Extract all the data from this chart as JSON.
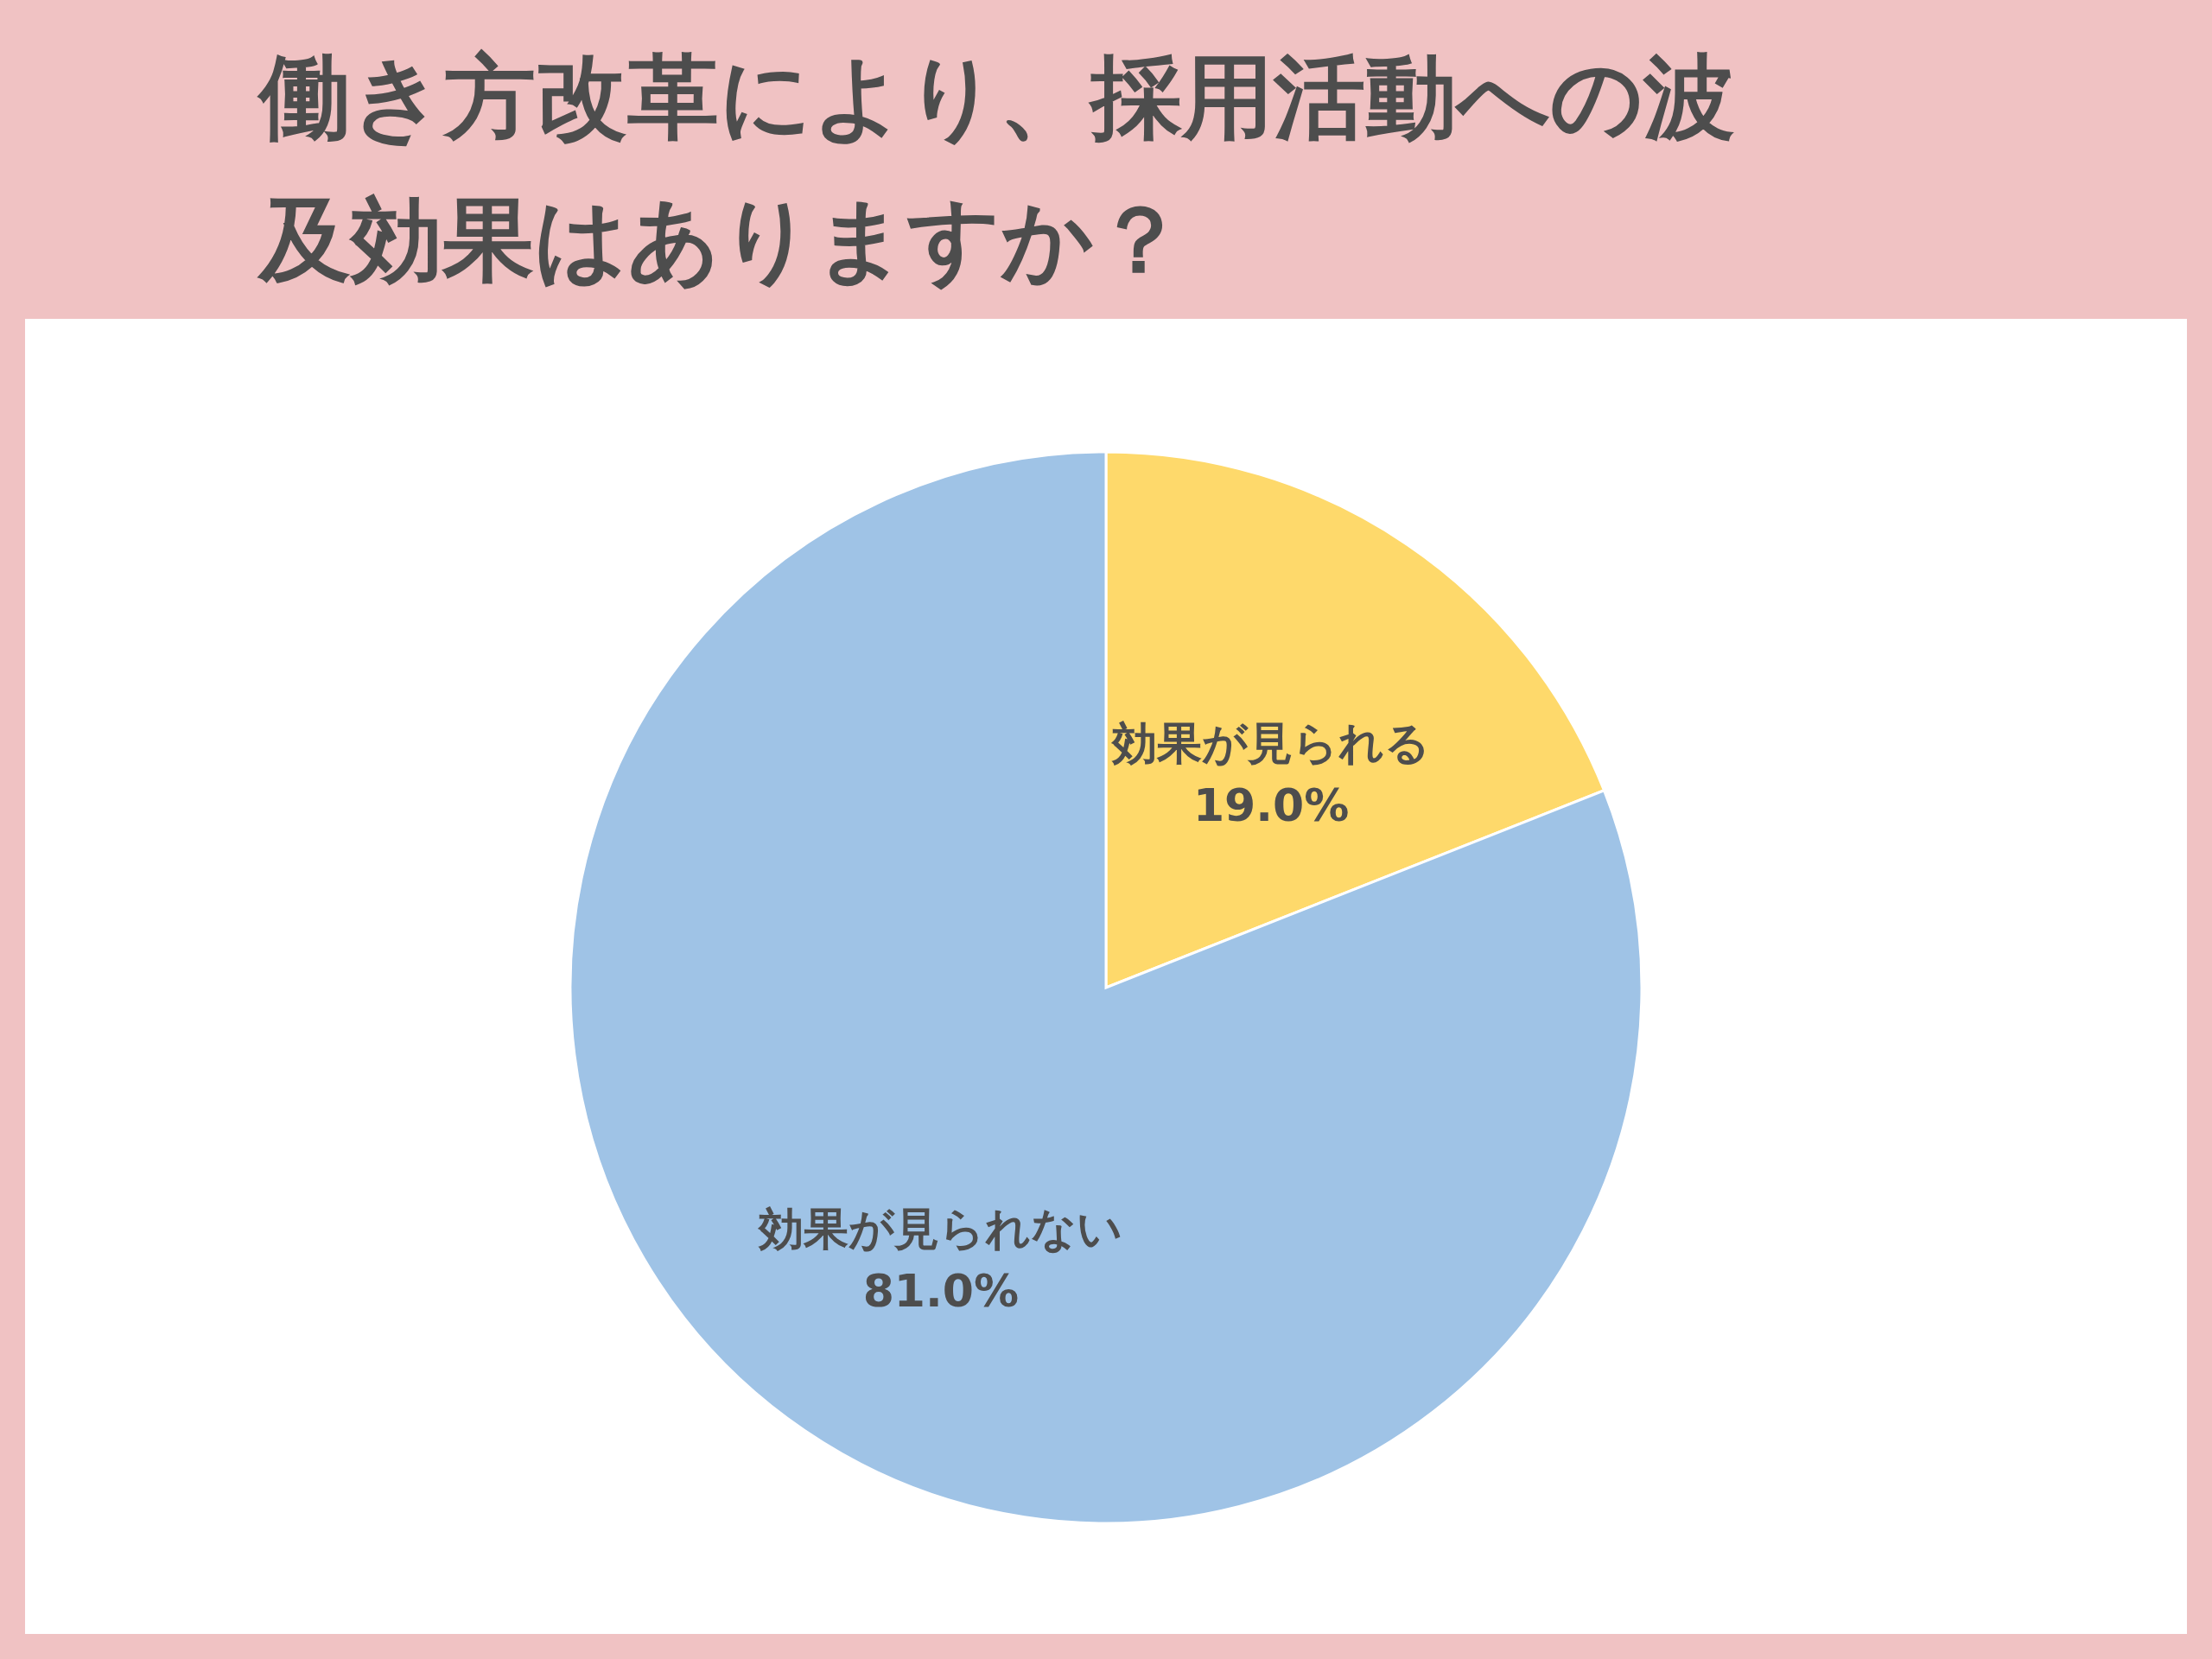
{
  "chart_data": {
    "type": "pie",
    "title": "働き方改革により、採用活動への波及効果はありますか？",
    "categories": [
      "効果が見られる",
      "効果が見られない"
    ],
    "values": [
      19.0,
      81.0
    ],
    "colors": [
      "#fed96b",
      "#9fc3e6"
    ],
    "value_labels": [
      "19.0%",
      "81.0%"
    ]
  }
}
